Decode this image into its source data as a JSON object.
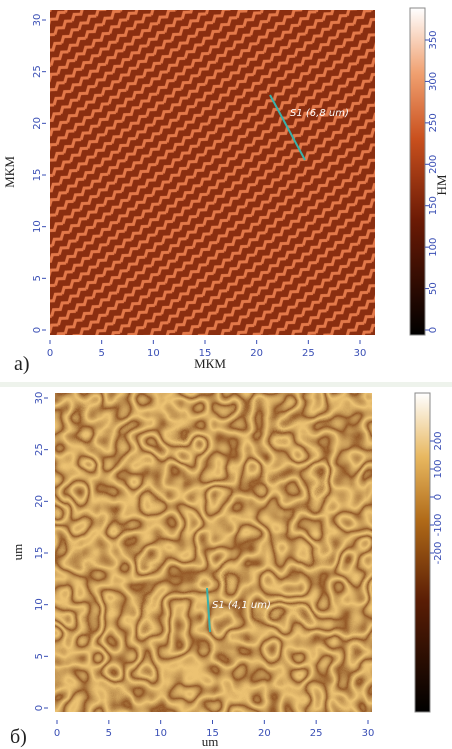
{
  "panels": [
    {
      "label": "а)",
      "xlabel": "МКМ",
      "ylabel": "МКМ",
      "xticks": [
        0,
        5,
        10,
        15,
        20,
        25,
        30
      ],
      "yticks": [
        0,
        5,
        10,
        15,
        20,
        25,
        30
      ],
      "colorbar": {
        "label": "НМ",
        "ticks": [
          0,
          50,
          100,
          150,
          200,
          250,
          300,
          350
        ]
      },
      "annotation": "S1 (6,8 um)"
    },
    {
      "label": "б)",
      "xlabel": "um",
      "ylabel": "um",
      "xticks": [
        0,
        5,
        10,
        15,
        20,
        25,
        30
      ],
      "yticks": [
        0,
        5,
        10,
        15,
        20,
        25,
        30
      ],
      "colorbar": {
        "ticks": [
          -200,
          -100,
          0,
          100,
          200
        ]
      },
      "annotation": "S1 (4,1 um)"
    }
  ]
}
